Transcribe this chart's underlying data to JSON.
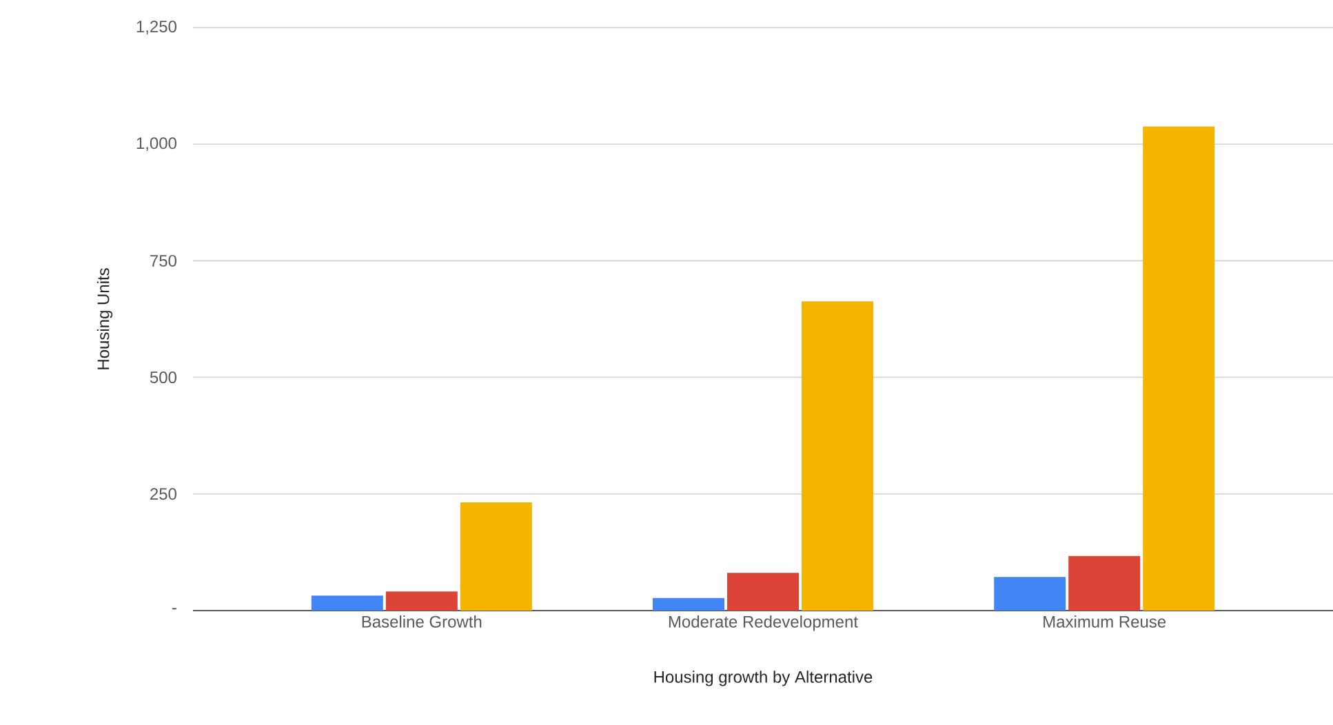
{
  "chart_data": {
    "type": "bar",
    "xlabel": "Housing growth by Alternative",
    "ylabel": "Housing Units",
    "categories": [
      "Baseline Growth",
      "Moderate Redevelopment",
      "Maximum Reuse"
    ],
    "series": [
      {
        "color": "#4285f4",
        "values": [
          32,
          27,
          72
        ]
      },
      {
        "color": "#db4437",
        "values": [
          41,
          81,
          117
        ]
      },
      {
        "color": "#f4b400",
        "values": [
          232,
          663,
          1038
        ]
      }
    ],
    "ylim": [
      0,
      1250
    ],
    "yticks": [
      {
        "value": 0,
        "label": "-"
      },
      {
        "value": 250,
        "label": "250"
      },
      {
        "value": 500,
        "label": "500"
      },
      {
        "value": 750,
        "label": "750"
      },
      {
        "value": 1000,
        "label": "1,000"
      },
      {
        "value": 1250,
        "label": "1,250"
      }
    ],
    "grid": "y"
  }
}
